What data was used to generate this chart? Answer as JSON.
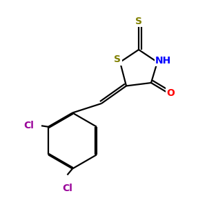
{
  "background": "#ffffff",
  "bond_color": "#000000",
  "S_color": "#808000",
  "N_color": "#0000ff",
  "O_color": "#ff0000",
  "Cl_color": "#990099",
  "S_label": "S",
  "N_label": "NH",
  "O_label": "O",
  "Cl_label": "Cl",
  "thioxo_S_label": "S",
  "lw": 1.6,
  "fs_hetero": 10,
  "fs_cl": 10
}
